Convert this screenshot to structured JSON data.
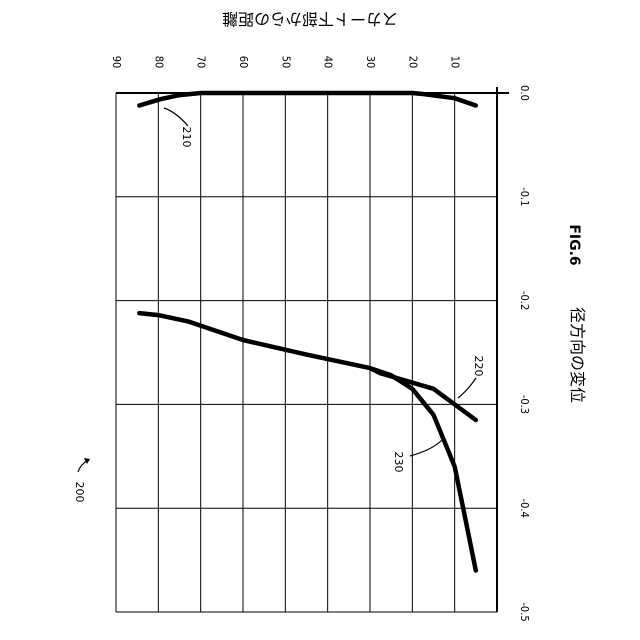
{
  "figure": {
    "fig_label": "FIG.6",
    "ref_number": "200"
  },
  "chart_data": {
    "type": "line",
    "orientation": "rotated-90-clockwise",
    "xlabel": "径方向の変位",
    "ylabel": "スカート下部からの距離",
    "x_axis": {
      "ticks": [
        "0.0",
        "-0.1",
        "-0.2",
        "-0.3",
        "-0.4",
        "-0.5"
      ],
      "range": [
        0.0,
        -0.5
      ]
    },
    "y_axis": {
      "ticks": [
        "90",
        "80",
        "70",
        "60",
        "50",
        "40",
        "30",
        "20",
        "10"
      ],
      "range": [
        90,
        0
      ]
    },
    "grid": true,
    "series": [
      {
        "name": "210",
        "points": [
          [
            -0.012,
            84.5
          ],
          [
            -0.006,
            79.5
          ],
          [
            -0.002,
            75.0
          ],
          [
            0.0,
            70.0
          ],
          [
            0.0,
            60.0
          ],
          [
            0.0,
            40.0
          ],
          [
            0.0,
            20.0
          ],
          [
            -0.001,
            17.5
          ],
          [
            -0.005,
            10.0
          ],
          [
            -0.012,
            5.0
          ]
        ]
      },
      {
        "name": "220",
        "points": [
          [
            -0.212,
            84.5
          ],
          [
            -0.214,
            80.0
          ],
          [
            -0.22,
            73.0
          ],
          [
            -0.238,
            60.0
          ],
          [
            -0.252,
            45.0
          ],
          [
            -0.265,
            30.0
          ],
          [
            -0.27,
            27.5
          ],
          [
            -0.285,
            15.0
          ],
          [
            -0.315,
            5.0
          ]
        ]
      },
      {
        "name": "230",
        "points": [
          [
            -0.265,
            30.0
          ],
          [
            -0.272,
            25.0
          ],
          [
            -0.285,
            20.0
          ],
          [
            -0.31,
            15.0
          ],
          [
            -0.335,
            12.5
          ],
          [
            -0.36,
            10.0
          ],
          [
            -0.41,
            7.5
          ],
          [
            -0.46,
            5.0
          ]
        ]
      }
    ]
  }
}
